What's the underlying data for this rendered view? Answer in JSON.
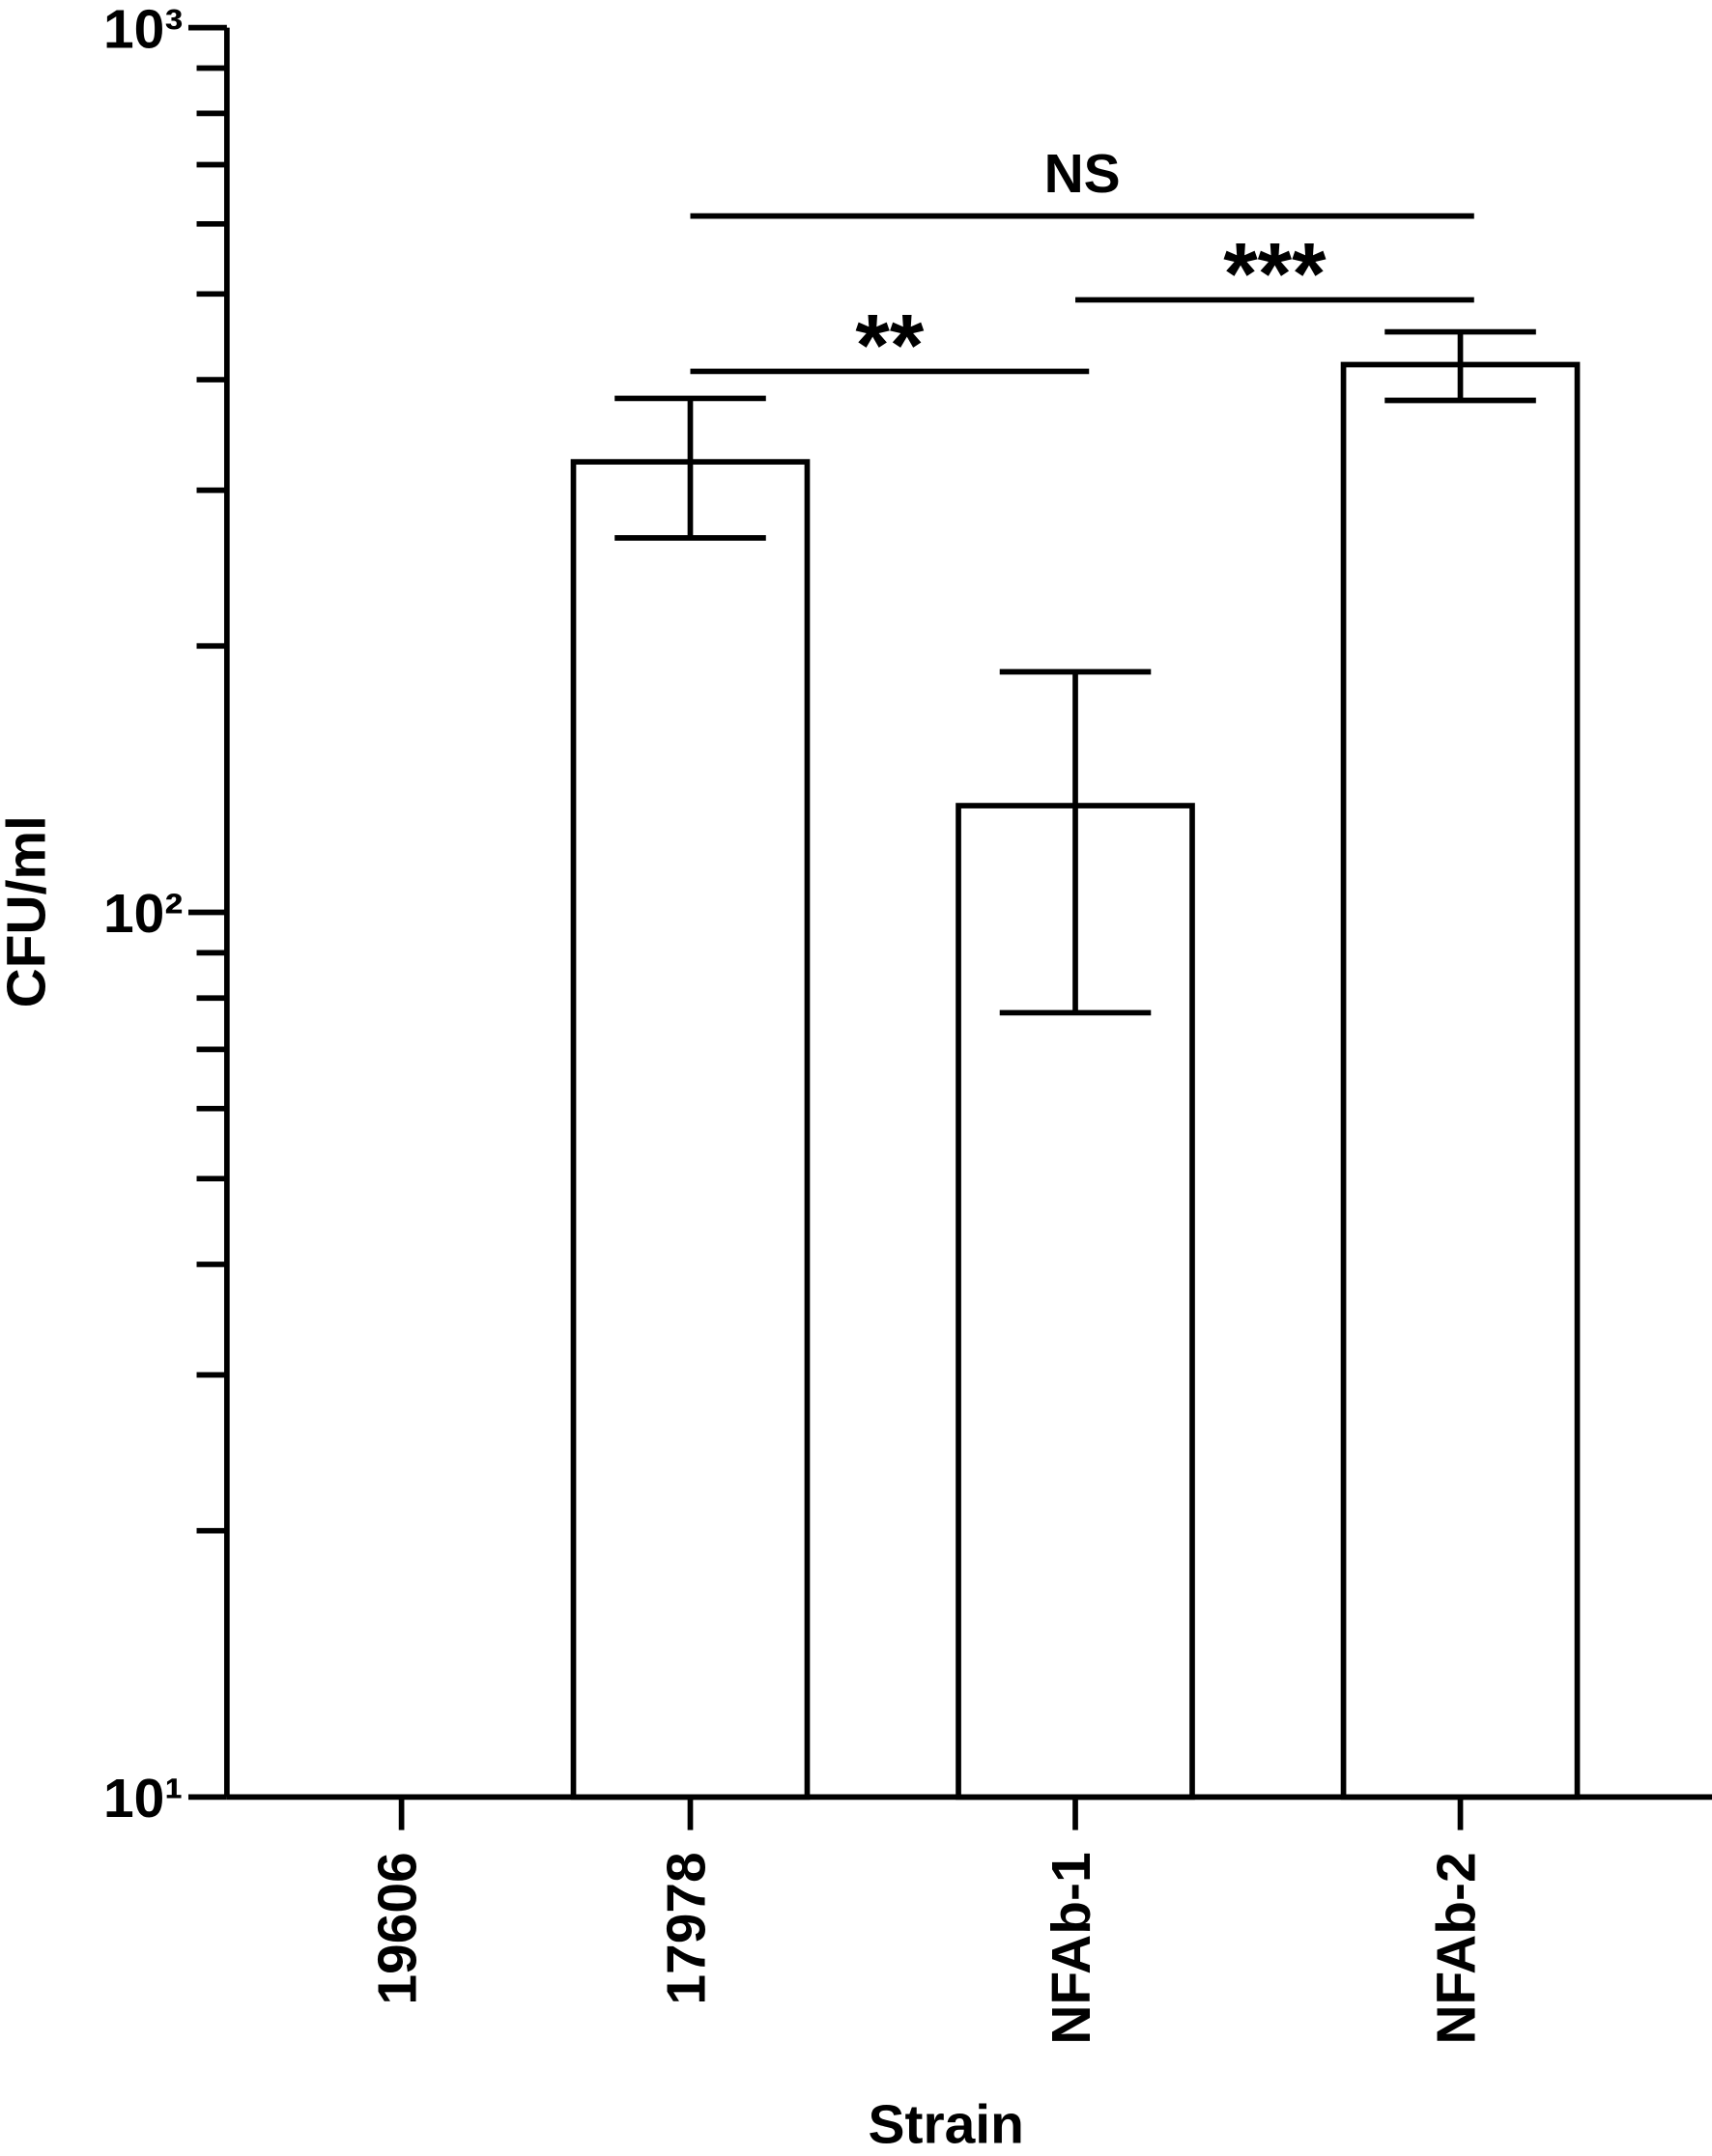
{
  "chart_data": {
    "type": "bar",
    "x_label": "Strain",
    "y_label": "CFU/ml",
    "categories": [
      "19606",
      "17978",
      "NFAb-1",
      "NFAb-2"
    ],
    "values": [
      null,
      323,
      132,
      416
    ],
    "errors": [
      null,
      58,
      55,
      37
    ],
    "color": "#ffffff",
    "log_scale": true,
    "ylim": [
      10,
      1000
    ],
    "yticks": [
      {
        "value": 10,
        "label": "10¹"
      },
      {
        "value": 100,
        "label": "10²"
      },
      {
        "value": 1000,
        "label": "10³"
      }
    ],
    "minor_yticks": [
      20,
      30,
      40,
      50,
      60,
      70,
      80,
      90,
      200,
      300,
      400,
      500,
      600,
      700,
      800,
      900
    ],
    "annotations": [
      {
        "text": "**",
        "from": "17978",
        "to": "NFAb-1"
      },
      {
        "text": "***",
        "from": "NFAb-1",
        "to": "NFAb-2"
      },
      {
        "text": "NS",
        "from": "17978",
        "to": "NFAb-2"
      }
    ]
  }
}
